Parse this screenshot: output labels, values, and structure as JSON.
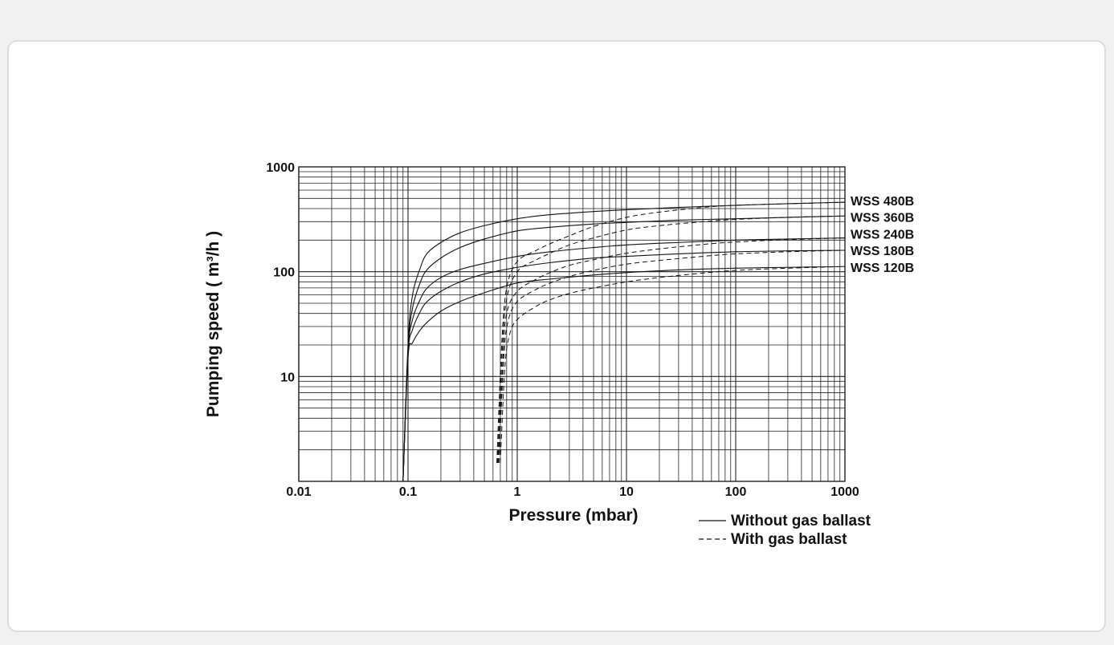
{
  "chart_data": {
    "type": "line",
    "title": "",
    "xlabel": "Pressure (mbar)",
    "ylabel": "Pumping speed ( m³/h )",
    "xscale": "log",
    "yscale": "log",
    "xlim": [
      0.01,
      1000
    ],
    "ylim": [
      1,
      1000
    ],
    "x_ticks": [
      "0.01",
      "0.1",
      "1",
      "10",
      "100",
      "1000"
    ],
    "y_ticks": [
      "10",
      "100",
      "1000"
    ],
    "grid": true,
    "legend": {
      "placement": "bottom-right",
      "entries": [
        {
          "label": "Without gas ballast",
          "style": "solid"
        },
        {
          "label": "With gas ballast",
          "style": "dashed"
        }
      ]
    },
    "series": [
      {
        "name": "WSS 480B",
        "without_gas_ballast": {
          "x": [
            0.09,
            0.1,
            0.11,
            0.13,
            0.15,
            0.2,
            0.3,
            0.5,
            1,
            2,
            5,
            10,
            30,
            100,
            300,
            1000
          ],
          "y": [
            1,
            20,
            60,
            110,
            150,
            190,
            235,
            275,
            320,
            350,
            375,
            390,
            410,
            430,
            445,
            460
          ]
        },
        "with_gas_ballast": {
          "x": [
            0.65,
            0.72,
            0.8,
            1,
            1.5,
            2,
            3,
            5,
            10,
            20,
            50,
            100,
            300,
            1000
          ],
          "y": [
            1.5,
            20,
            70,
            125,
            160,
            185,
            220,
            270,
            330,
            370,
            410,
            430,
            445,
            460
          ]
        }
      },
      {
        "name": "WSS 360B",
        "without_gas_ballast": {
          "x": [
            0.09,
            0.1,
            0.11,
            0.13,
            0.15,
            0.2,
            0.3,
            0.5,
            1,
            2,
            5,
            10,
            30,
            100,
            300,
            1000
          ],
          "y": [
            1,
            18,
            45,
            80,
            105,
            135,
            170,
            205,
            245,
            265,
            285,
            295,
            310,
            320,
            330,
            340
          ]
        },
        "with_gas_ballast": {
          "x": [
            0.66,
            0.73,
            0.8,
            1,
            1.5,
            2,
            3,
            5,
            10,
            20,
            50,
            100,
            300,
            1000
          ],
          "y": [
            1.5,
            18,
            55,
            100,
            130,
            150,
            180,
            210,
            250,
            275,
            300,
            315,
            330,
            340
          ]
        }
      },
      {
        "name": "WSS 240B",
        "without_gas_ballast": {
          "x": [
            0.09,
            0.1,
            0.11,
            0.13,
            0.15,
            0.2,
            0.3,
            0.5,
            1,
            2,
            5,
            10,
            30,
            100,
            300,
            1000
          ],
          "y": [
            1,
            17,
            35,
            55,
            70,
            88,
            105,
            120,
            140,
            155,
            170,
            180,
            190,
            200,
            205,
            210
          ]
        },
        "with_gas_ballast": {
          "x": [
            0.67,
            0.74,
            0.8,
            1,
            1.5,
            2,
            3,
            5,
            10,
            20,
            50,
            100,
            300,
            1000
          ],
          "y": [
            1.5,
            15,
            40,
            65,
            85,
            98,
            115,
            130,
            150,
            165,
            182,
            192,
            202,
            210
          ]
        }
      },
      {
        "name": "WSS 180B",
        "without_gas_ballast": {
          "x": [
            0.09,
            0.1,
            0.11,
            0.13,
            0.15,
            0.2,
            0.3,
            0.5,
            1,
            2,
            5,
            10,
            30,
            100,
            300,
            1000
          ],
          "y": [
            1,
            16,
            28,
            42,
            52,
            65,
            80,
            95,
            110,
            122,
            135,
            140,
            148,
            155,
            158,
            160
          ]
        },
        "with_gas_ballast": {
          "x": [
            0.68,
            0.75,
            0.82,
            1,
            1.5,
            2,
            3,
            5,
            10,
            20,
            50,
            100,
            300,
            1000
          ],
          "y": [
            1.5,
            14,
            33,
            52,
            68,
            78,
            90,
            103,
            118,
            128,
            140,
            148,
            155,
            160
          ]
        }
      },
      {
        "name": "WSS 120B",
        "without_gas_ballast": {
          "x": [
            0.09,
            0.1,
            0.11,
            0.13,
            0.15,
            0.2,
            0.3,
            0.5,
            1,
            2,
            5,
            10,
            30,
            100,
            300,
            1000
          ],
          "y": [
            1,
            15,
            21,
            28,
            33,
            42,
            52,
            63,
            78,
            85,
            93,
            98,
            104,
            108,
            110,
            112
          ]
        },
        "with_gas_ballast": {
          "x": [
            0.7,
            0.77,
            0.85,
            1,
            1.5,
            2,
            3,
            5,
            10,
            20,
            50,
            100,
            300,
            1000
          ],
          "y": [
            1.5,
            12,
            25,
            35,
            47,
            54,
            62,
            70,
            80,
            88,
            97,
            103,
            108,
            112
          ]
        }
      }
    ]
  }
}
